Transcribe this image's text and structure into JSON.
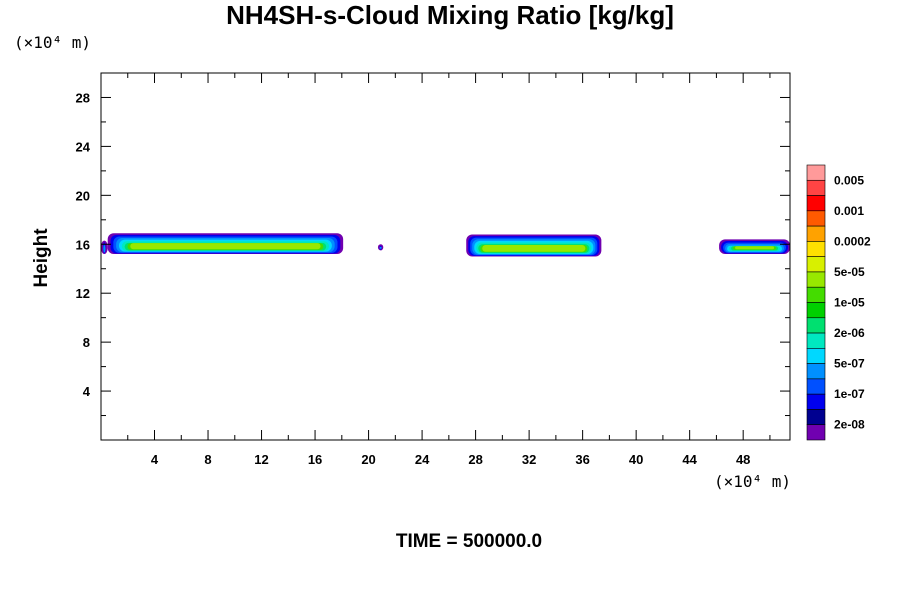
{
  "chart_data": {
    "type": "contour",
    "title": "NH4SH-s-Cloud Mixing Ratio [kg/kg]",
    "xlabel": "",
    "ylabel": "Height",
    "x_unit": "(×10⁴ m)",
    "y_unit": "(×10⁴ m)",
    "xlim": [
      0,
      51.5
    ],
    "ylim": [
      0,
      30
    ],
    "x_ticks": [
      4,
      8,
      12,
      16,
      20,
      24,
      28,
      32,
      36,
      40,
      44,
      48
    ],
    "y_ticks": [
      4,
      8,
      12,
      16,
      20,
      24,
      28
    ],
    "footer": "TIME = 500000.0",
    "colorbar": {
      "labels": [
        "0.005",
        "0.001",
        "0.0002",
        "5e-05",
        "1e-05",
        "2e-06",
        "5e-07",
        "1e-07",
        "2e-08"
      ],
      "colors_top_to_bottom": [
        "#ff9a9a",
        "#ff4444",
        "#ff0000",
        "#ff5a00",
        "#ffa200",
        "#ffe000",
        "#d8f000",
        "#98e800",
        "#44dc00",
        "#00d000",
        "#00e070",
        "#00e8c0",
        "#00d8ff",
        "#0090ff",
        "#0050ff",
        "#0000ee",
        "#000090",
        "#7000b0"
      ]
    },
    "cloud_regions": [
      {
        "x_range": [
          0,
          0.5
        ],
        "y_range": [
          15.2,
          16.3
        ]
      },
      {
        "x_range": [
          0.5,
          18.1
        ],
        "y_range": [
          15.2,
          16.9
        ]
      },
      {
        "x_range": [
          20.7,
          21.1
        ],
        "y_range": [
          15.5,
          16.0
        ]
      },
      {
        "x_range": [
          27.3,
          37.4
        ],
        "y_range": [
          15.0,
          16.8
        ]
      },
      {
        "x_range": [
          46.2,
          51.5
        ],
        "y_range": [
          15.2,
          16.4
        ]
      }
    ]
  }
}
